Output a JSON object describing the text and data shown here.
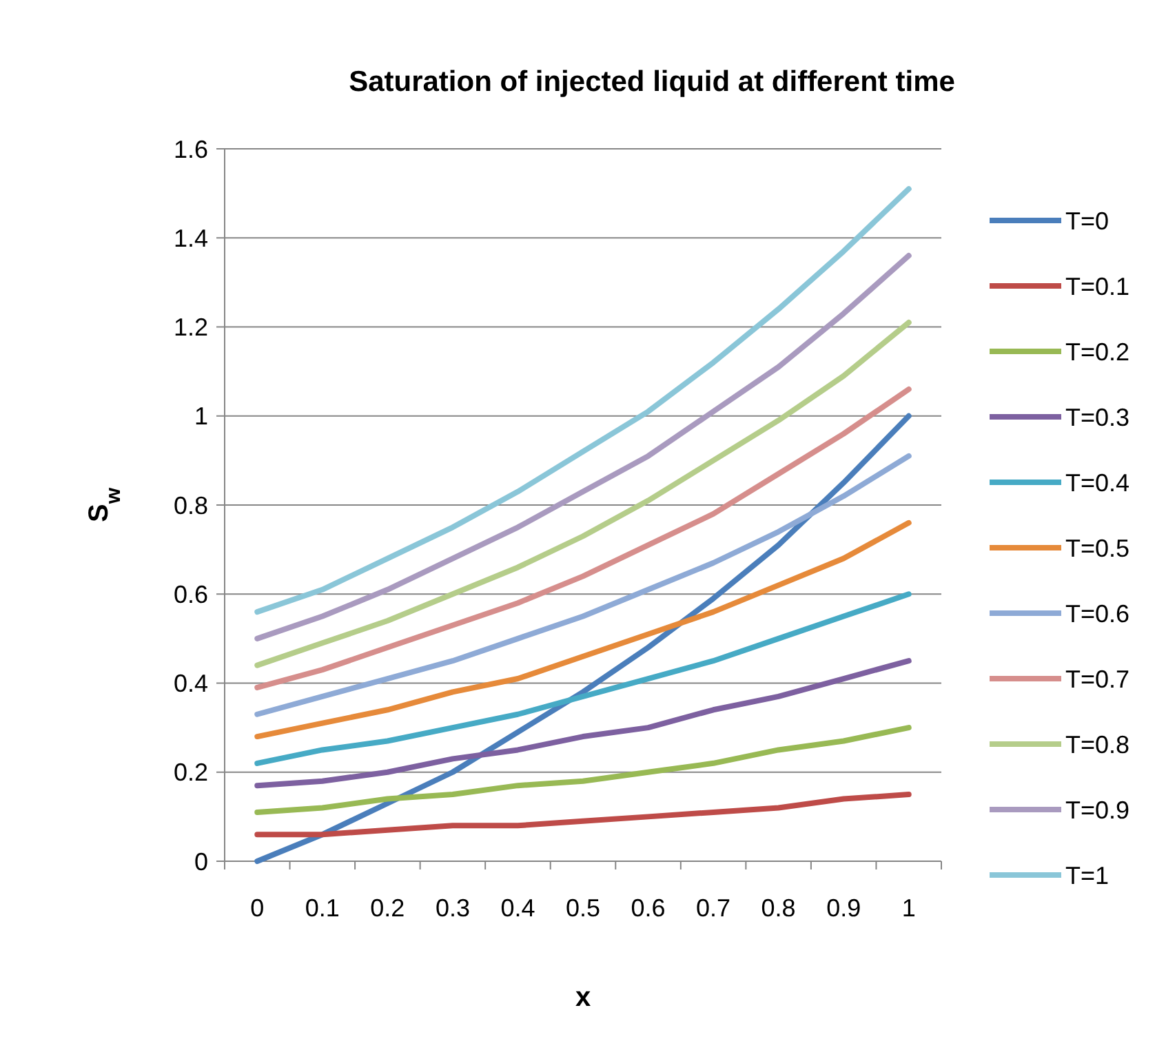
{
  "chart_data": {
    "type": "line",
    "title": "Saturation of injected liquid at different time",
    "xlabel": "x",
    "ylabel": "S$_{w}$",
    "categories": [
      "0",
      "0.1",
      "0.2",
      "0.3",
      "0.4",
      "0.5",
      "0.6",
      "0.7",
      "0.8",
      "0.9",
      "1"
    ],
    "ylim": [
      0,
      1.6
    ],
    "yticks": [
      0,
      0.2,
      0.4,
      0.6,
      0.8,
      1,
      1.2,
      1.4,
      1.6
    ],
    "grid": "y",
    "legend": "right",
    "marker": "none",
    "line_style": "solid",
    "series": [
      {
        "name": "T=0",
        "color": "#4a7ebb",
        "values": [
          0,
          0.06,
          0.13,
          0.2,
          0.29,
          0.38,
          0.48,
          0.59,
          0.71,
          0.85,
          1.0
        ]
      },
      {
        "name": "T=0.1",
        "color": "#be4b48",
        "values": [
          0.06,
          0.06,
          0.07,
          0.08,
          0.08,
          0.09,
          0.1,
          0.11,
          0.12,
          0.14,
          0.15
        ]
      },
      {
        "name": "T=0.2",
        "color": "#98b954",
        "values": [
          0.11,
          0.12,
          0.14,
          0.15,
          0.17,
          0.18,
          0.2,
          0.22,
          0.25,
          0.27,
          0.3
        ]
      },
      {
        "name": "T=0.3",
        "color": "#7d60a0",
        "values": [
          0.17,
          0.18,
          0.2,
          0.23,
          0.25,
          0.28,
          0.3,
          0.34,
          0.37,
          0.41,
          0.45
        ]
      },
      {
        "name": "T=0.4",
        "color": "#46aac5",
        "values": [
          0.22,
          0.25,
          0.27,
          0.3,
          0.33,
          0.37,
          0.41,
          0.45,
          0.5,
          0.55,
          0.6
        ]
      },
      {
        "name": "T=0.5",
        "color": "#e68a3a",
        "values": [
          0.28,
          0.31,
          0.34,
          0.38,
          0.41,
          0.46,
          0.51,
          0.56,
          0.62,
          0.68,
          0.76
        ]
      },
      {
        "name": "T=0.6",
        "color": "#8eaad6",
        "values": [
          0.33,
          0.37,
          0.41,
          0.45,
          0.5,
          0.55,
          0.61,
          0.67,
          0.74,
          0.82,
          0.91
        ]
      },
      {
        "name": "T=0.7",
        "color": "#d68e8c",
        "values": [
          0.39,
          0.43,
          0.48,
          0.53,
          0.58,
          0.64,
          0.71,
          0.78,
          0.87,
          0.96,
          1.06
        ]
      },
      {
        "name": "T=0.8",
        "color": "#b5cd8a",
        "values": [
          0.44,
          0.49,
          0.54,
          0.6,
          0.66,
          0.73,
          0.81,
          0.9,
          0.99,
          1.09,
          1.21
        ]
      },
      {
        "name": "T=0.9",
        "color": "#a99abf",
        "values": [
          0.5,
          0.55,
          0.61,
          0.68,
          0.75,
          0.83,
          0.91,
          1.01,
          1.11,
          1.23,
          1.36
        ]
      },
      {
        "name": "T=1",
        "color": "#8ac6d8",
        "values": [
          0.56,
          0.61,
          0.68,
          0.75,
          0.83,
          0.92,
          1.01,
          1.12,
          1.24,
          1.37,
          1.51
        ]
      }
    ]
  }
}
